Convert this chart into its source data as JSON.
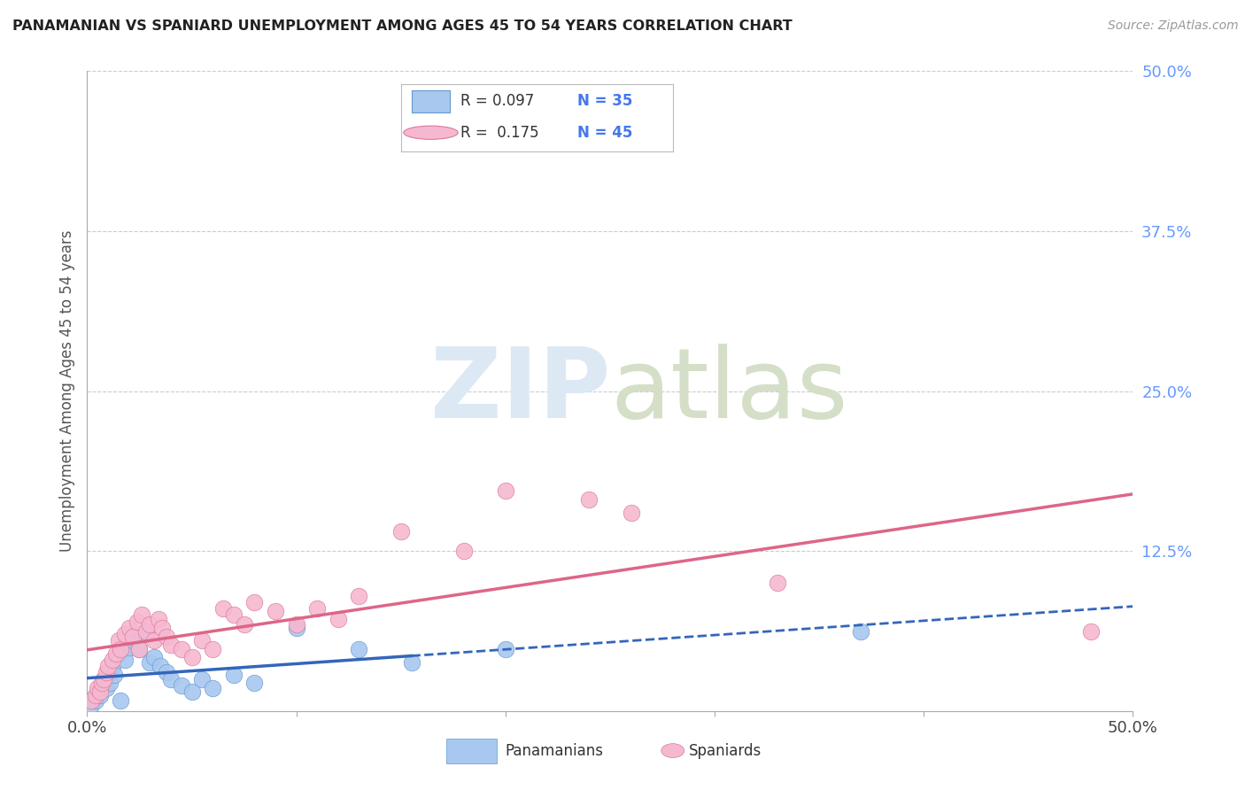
{
  "title": "PANAMANIAN VS SPANIARD UNEMPLOYMENT AMONG AGES 45 TO 54 YEARS CORRELATION CHART",
  "source": "Source: ZipAtlas.com",
  "ylabel": "Unemployment Among Ages 45 to 54 years",
  "xlim": [
    0.0,
    0.5
  ],
  "ylim": [
    0.0,
    0.5
  ],
  "background_color": "#ffffff",
  "panamanian_color": "#a8c8f0",
  "panamanian_edge_color": "#6699cc",
  "panamanian_line_color": "#3366bb",
  "spaniard_color": "#f5b8d0",
  "spaniard_edge_color": "#dd7799",
  "spaniard_line_color": "#dd6688",
  "watermark_zip_color": "#dde8f5",
  "watermark_atlas_color": "#d5dfc8",
  "pan_x": [
    0.002,
    0.003,
    0.004,
    0.005,
    0.006,
    0.007,
    0.008,
    0.009,
    0.01,
    0.011,
    0.012,
    0.013,
    0.015,
    0.016,
    0.018,
    0.02,
    0.022,
    0.025,
    0.028,
    0.03,
    0.032,
    0.035,
    0.038,
    0.04,
    0.045,
    0.05,
    0.055,
    0.06,
    0.07,
    0.08,
    0.1,
    0.13,
    0.155,
    0.2,
    0.37
  ],
  "pan_y": [
    0.005,
    0.01,
    0.008,
    0.015,
    0.012,
    0.02,
    0.025,
    0.018,
    0.03,
    0.022,
    0.035,
    0.028,
    0.045,
    0.008,
    0.04,
    0.05,
    0.055,
    0.048,
    0.06,
    0.038,
    0.042,
    0.035,
    0.03,
    0.025,
    0.02,
    0.015,
    0.025,
    0.018,
    0.028,
    0.022,
    0.065,
    0.048,
    0.038,
    0.048,
    0.062
  ],
  "spa_x": [
    0.002,
    0.004,
    0.005,
    0.006,
    0.007,
    0.008,
    0.009,
    0.01,
    0.012,
    0.014,
    0.015,
    0.016,
    0.018,
    0.02,
    0.022,
    0.024,
    0.025,
    0.026,
    0.028,
    0.03,
    0.032,
    0.034,
    0.036,
    0.038,
    0.04,
    0.045,
    0.05,
    0.055,
    0.06,
    0.065,
    0.07,
    0.075,
    0.08,
    0.09,
    0.1,
    0.11,
    0.12,
    0.13,
    0.15,
    0.18,
    0.2,
    0.24,
    0.26,
    0.33,
    0.48
  ],
  "spa_y": [
    0.008,
    0.012,
    0.018,
    0.015,
    0.022,
    0.025,
    0.03,
    0.035,
    0.04,
    0.045,
    0.055,
    0.048,
    0.06,
    0.065,
    0.058,
    0.07,
    0.048,
    0.075,
    0.062,
    0.068,
    0.055,
    0.072,
    0.065,
    0.058,
    0.052,
    0.048,
    0.042,
    0.055,
    0.048,
    0.08,
    0.075,
    0.068,
    0.085,
    0.078,
    0.068,
    0.08,
    0.072,
    0.09,
    0.14,
    0.125,
    0.172,
    0.165,
    0.155,
    0.1,
    0.062
  ],
  "pan_line_x_start": 0.0,
  "pan_line_x_solid_end": 0.155,
  "pan_line_x_dash_end": 0.5,
  "spa_line_x_start": 0.0,
  "spa_line_x_end": 0.5
}
